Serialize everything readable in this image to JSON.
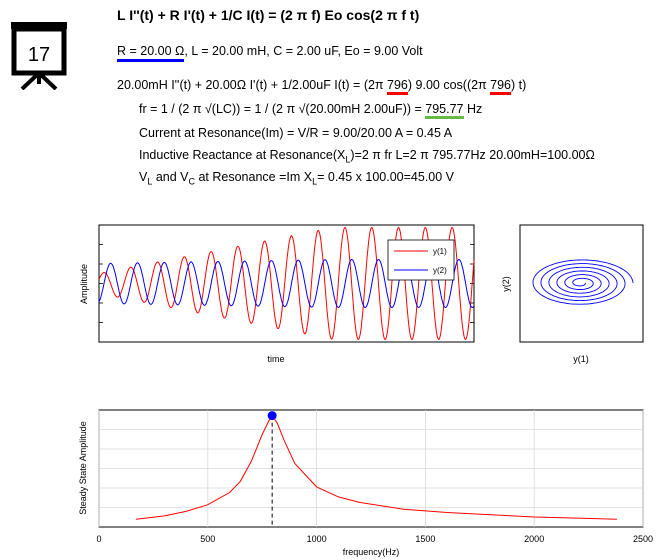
{
  "equation_title": "L I''(t) + R I'(t) + 1/C I(t) = (2 π f) Eo cos(2 π f t)",
  "params": {
    "r": "R = 20.00 Ω",
    "rest": ", L = 20.00 mH, C = 2.00 uF, Eo = 9.00 Volt"
  },
  "icon_number": "17",
  "line1": {
    "a": "20.00mH I''(t) + 20.00Ω I'(t) + 1/2.00uF I(t) = (2π ",
    "f1": "796",
    "b": ") 9.00 cos((2π ",
    "f2": "796",
    "c": ") t)"
  },
  "line2": {
    "a": "fr = 1 / (2 π √(LC)) = 1 / (2 π √(20.00mH 2.00uF)) = ",
    "val": "795.77",
    "unit": " Hz"
  },
  "line3": "Current at Resonance(Im) = V/R = 9.00/20.00 A = 0.45 A",
  "line4": {
    "a": "Inductive Reactance at Resonance(X",
    "sub": "L",
    "b": ")=2 π fr L=2 π 795.77Hz 20.00mH=100.00Ω"
  },
  "line5": {
    "a": "V",
    "s1": "L",
    "b": " and V",
    "s2": "C",
    "c": " at Resonance =Im X",
    "s3": "L",
    "d": "= 0.45 x 100.00=45.00 V"
  },
  "colors": {
    "red": "#ff0000",
    "blue": "#0000ff",
    "green": "#66bb44",
    "grid": "#d8d8d8"
  },
  "chart_data": [
    {
      "type": "line",
      "name": "time-response",
      "xlabel": "time",
      "ylabel": "Amplitude",
      "series": [
        {
          "name": "y(1)",
          "color": "#ff0000",
          "periods": 14,
          "amplitude_growth": "increasing"
        },
        {
          "name": "y(2)",
          "color": "#0000ff",
          "periods": 14,
          "amplitude_growth": "steady"
        }
      ],
      "legend": "top-right",
      "grid": false
    },
    {
      "type": "line",
      "name": "phase-portrait",
      "xlabel": "y(1)",
      "ylabel": "y(2)",
      "series": [
        {
          "name": "trajectory",
          "color": "#0000ff",
          "shape": "spiral"
        }
      ],
      "grid": false
    },
    {
      "type": "line",
      "name": "frequency-response",
      "xlabel": "frequency(Hz)",
      "ylabel": "Steady State Amplitude",
      "xlim": [
        0,
        2500
      ],
      "xticks": [
        0,
        500,
        1000,
        1500,
        2000,
        2500
      ],
      "resonance_x": 795.77,
      "x": [
        170,
        300,
        400,
        500,
        600,
        650,
        700,
        750,
        780,
        796,
        820,
        850,
        900,
        1000,
        1100,
        1200,
        1400,
        1600,
        1800,
        2000,
        2200,
        2380
      ],
      "series": [
        {
          "name": "",
          "color": "#ff0000",
          "values": [
            0.07,
            0.1,
            0.14,
            0.2,
            0.31,
            0.41,
            0.59,
            0.83,
            0.95,
            1.0,
            0.93,
            0.78,
            0.57,
            0.36,
            0.27,
            0.22,
            0.16,
            0.13,
            0.11,
            0.09,
            0.08,
            0.07
          ]
        }
      ],
      "ylim": [
        0,
        1.05
      ],
      "grid": true
    }
  ]
}
